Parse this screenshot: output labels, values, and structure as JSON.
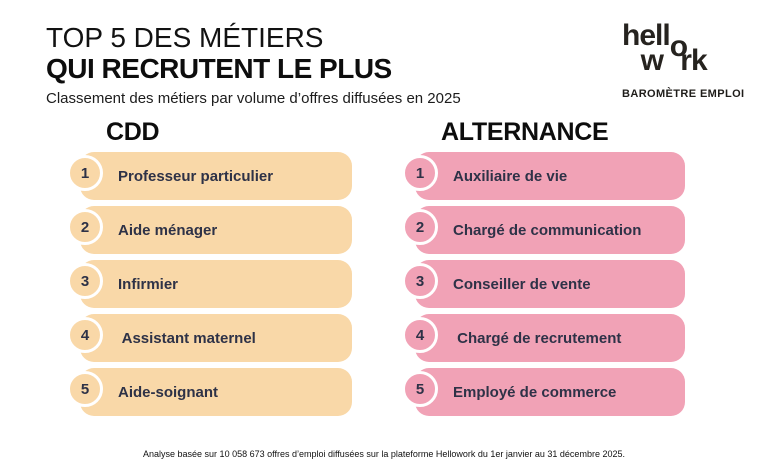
{
  "header": {
    "title_line1": "TOP 5 DES MÉTIERS",
    "title_line2": "QUI RECRUTENT LE PLUS",
    "subtitle": "Classement des métiers par volume d’offres diffusées en 2025"
  },
  "logo": {
    "line1_start": "hell",
    "shared_o": "o",
    "line2_start": "w",
    "line2_end": "rk",
    "tagline": "BAROMÈTRE EMPLOI"
  },
  "columns": [
    {
      "header": "CDD",
      "bar_color": "#F9D8A8",
      "items": [
        {
          "rank": "1",
          "label": "Professeur particulier"
        },
        {
          "rank": "2",
          "label": "Aide ménager"
        },
        {
          "rank": "3",
          "label": "Infirmier"
        },
        {
          "rank": "4",
          "label": " Assistant maternel"
        },
        {
          "rank": "5",
          "label": "Aide-soignant"
        }
      ]
    },
    {
      "header": "ALTERNANCE",
      "bar_color": "#F1A2B6",
      "items": [
        {
          "rank": "1",
          "label": "Auxiliaire de vie"
        },
        {
          "rank": "2",
          "label": "Chargé de communication"
        },
        {
          "rank": "3",
          "label": "Conseiller de vente"
        },
        {
          "rank": "4",
          "label": " Chargé de recrutement"
        },
        {
          "rank": "5",
          "label": "Employé de commerce"
        }
      ]
    }
  ],
  "footer": {
    "note": "Analyse basée sur 10 058 673 offres d’emploi diffusées sur la plateforme Hellowork du 1er janvier au 31 décembre 2025."
  },
  "colors": {
    "background": "#FFFFFF",
    "cdd_bar": "#F9D8A8",
    "alternance_bar": "#F1A2B6",
    "label_text": "#2E3247",
    "heading_text": "#0D0D0D",
    "circle_ring": "#FFFFFF"
  },
  "chart_data": {
    "type": "table",
    "title": "TOP 5 DES MÉTIERS QUI RECRUTENT LE PLUS",
    "subtitle": "Classement des métiers par volume d’offres diffusées en 2025",
    "columns": [
      "CDD",
      "ALTERNANCE"
    ],
    "rankings": {
      "CDD": [
        "Professeur particulier",
        "Aide ménager",
        "Infirmier",
        "Assistant maternel",
        "Aide-soignant"
      ],
      "ALTERNANCE": [
        "Auxiliaire de vie",
        "Chargé de communication",
        "Conseiller de vente",
        "Chargé de recrutement",
        "Employé de commerce"
      ]
    },
    "note": "Analyse basée sur 10 058 673 offres d’emploi diffusées sur la plateforme Hellowork du 1er janvier au 31 décembre 2025.",
    "source_brand": "hellowork — BAROMÈTRE EMPLOI"
  }
}
